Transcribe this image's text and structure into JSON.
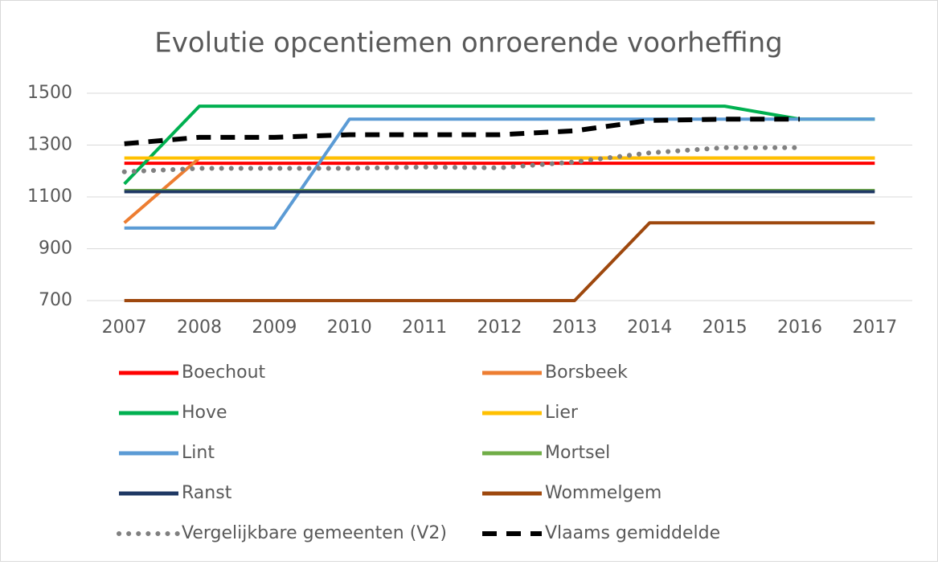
{
  "chart_data": {
    "type": "line",
    "title": "Evolutie opcentiemen onroerende voorheffing",
    "categories": [
      "2007",
      "2008",
      "2009",
      "2010",
      "2011",
      "2012",
      "2013",
      "2014",
      "2015",
      "2016",
      "2017"
    ],
    "ylim": [
      700,
      1500
    ],
    "yticks": [
      700,
      900,
      1100,
      1300,
      1500
    ],
    "grid": true,
    "legend": "bottom",
    "series": [
      {
        "name": "Boechout",
        "color": "#ff0000",
        "style": "solid",
        "values": [
          1230,
          1230,
          1230,
          1230,
          1230,
          1230,
          1230,
          1230,
          1230,
          1230,
          1230
        ]
      },
      {
        "name": "Borsbeek",
        "color": "#ed7d31",
        "style": "solid",
        "values": [
          1000,
          1250,
          1250,
          1250,
          1250,
          1250,
          1250,
          1250,
          1250,
          1250,
          1250
        ]
      },
      {
        "name": "Hove",
        "color": "#00b050",
        "style": "solid",
        "values": [
          1150,
          1450,
          1450,
          1450,
          1450,
          1450,
          1450,
          1450,
          1450,
          1400,
          1400
        ]
      },
      {
        "name": "Lier",
        "color": "#ffc000",
        "style": "solid",
        "values": [
          1250,
          1250,
          1250,
          1250,
          1250,
          1250,
          1250,
          1250,
          1250,
          1250,
          1250
        ]
      },
      {
        "name": "Lint",
        "color": "#5b9bd5",
        "style": "solid",
        "values": [
          980,
          980,
          980,
          1400,
          1400,
          1400,
          1400,
          1400,
          1400,
          1400,
          1400
        ]
      },
      {
        "name": "Mortsel",
        "color": "#70ad47",
        "style": "solid",
        "values": [
          1125,
          1125,
          1125,
          1125,
          1125,
          1125,
          1125,
          1125,
          1125,
          1125,
          1125
        ]
      },
      {
        "name": "Ranst",
        "color": "#1f3864",
        "style": "solid",
        "values": [
          1120,
          1120,
          1120,
          1120,
          1120,
          1120,
          1120,
          1120,
          1120,
          1120,
          1120
        ]
      },
      {
        "name": "Wommelgem",
        "color": "#9e480e",
        "style": "solid",
        "values": [
          700,
          700,
          700,
          700,
          700,
          700,
          700,
          1000,
          1000,
          1000,
          1000
        ]
      },
      {
        "name": "Vergelijkbare gemeenten (V2)",
        "color": "#808080",
        "style": "dotted",
        "values": [
          1197,
          1210,
          1210,
          1210,
          1215,
          1212,
          1235,
          1270,
          1290,
          1290,
          null
        ]
      },
      {
        "name": "Vlaams gemiddelde",
        "color": "#000000",
        "style": "dashed",
        "values": [
          1305,
          1330,
          1330,
          1340,
          1340,
          1340,
          1355,
          1395,
          1400,
          1400,
          null
        ]
      }
    ]
  }
}
